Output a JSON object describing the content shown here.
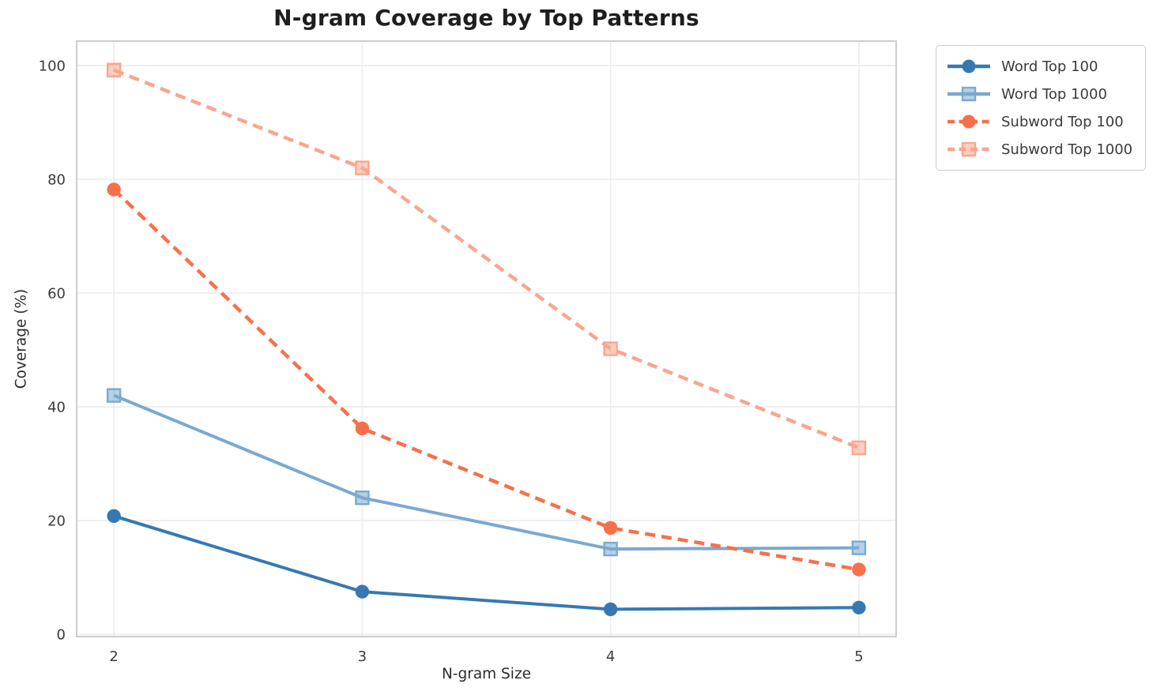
{
  "chart_data": {
    "type": "line",
    "title": "N-gram Coverage by Top Patterns",
    "xlabel": "N-gram Size",
    "ylabel": "Coverage (%)",
    "x": [
      2,
      3,
      4,
      5
    ],
    "xticks": [
      "2",
      "3",
      "4",
      "5"
    ],
    "yticks": [
      0,
      20,
      40,
      60,
      80,
      100
    ],
    "xlim": [
      1.85,
      5.15
    ],
    "ylim": [
      -0.4,
      104.3
    ],
    "grid": true,
    "legend_position": "outside-upper-right",
    "series": [
      {
        "name": "Word Top 100",
        "color": "#3679b2",
        "line_style": "solid",
        "marker": "circle",
        "values": [
          20.8,
          7.5,
          4.4,
          4.7
        ]
      },
      {
        "name": "Word Top 1000",
        "color": "#7aa9d1",
        "line_style": "solid",
        "marker": "square",
        "values": [
          42.0,
          24.0,
          15.0,
          15.2
        ]
      },
      {
        "name": "Subword Top 100",
        "color": "#f7704a",
        "line_style": "dashed",
        "marker": "circle",
        "values": [
          78.2,
          36.2,
          18.7,
          11.4
        ]
      },
      {
        "name": "Subword Top 1000",
        "color": "#faa58c",
        "line_style": "dashed",
        "marker": "square",
        "values": [
          99.2,
          82.0,
          50.2,
          32.8
        ]
      }
    ],
    "colors": {
      "grid": "#ececec",
      "spine": "#c9c9c9",
      "tick_label": "#3b3b3b"
    }
  }
}
